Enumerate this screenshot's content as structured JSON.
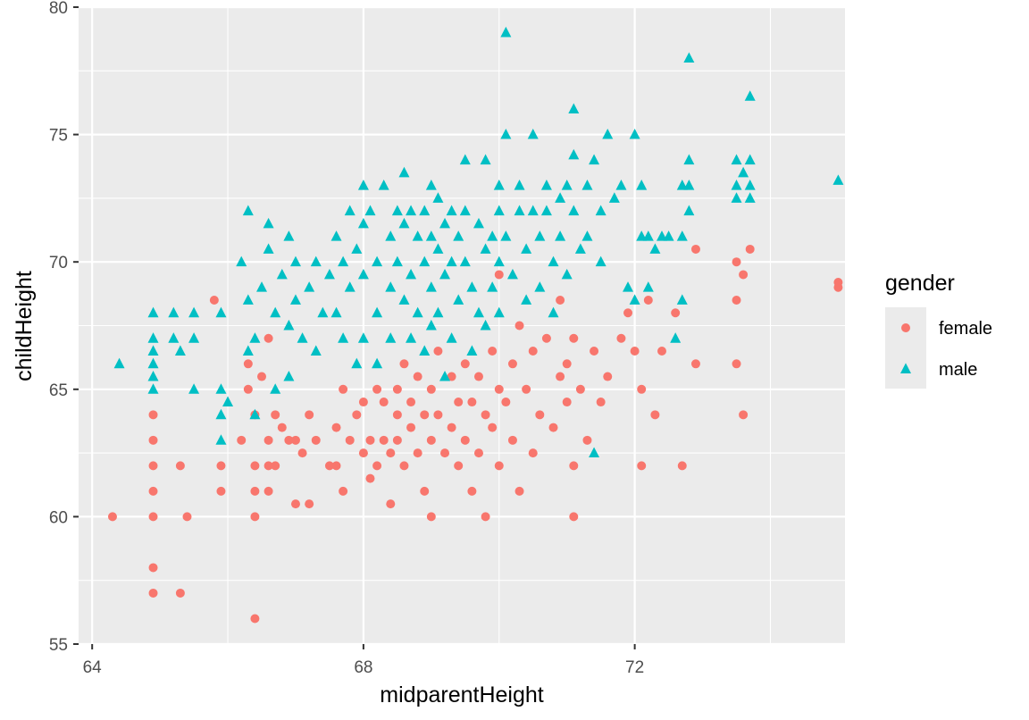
{
  "chart_data": {
    "type": "scatter",
    "title": "",
    "xlabel": "midparentHeight",
    "ylabel": "childHeight",
    "xlim": [
      63.8,
      75.1
    ],
    "ylim": [
      55,
      80
    ],
    "x_ticks": [
      64,
      68,
      72
    ],
    "y_ticks": [
      55,
      60,
      65,
      70,
      75,
      80
    ],
    "grid": true,
    "legend_title": "gender",
    "legend_position": "right",
    "series": [
      {
        "name": "female",
        "color": "#F8766D",
        "marker": "circle",
        "points": [
          [
            64.3,
            60
          ],
          [
            64.9,
            64
          ],
          [
            64.9,
            63
          ],
          [
            64.9,
            62
          ],
          [
            64.9,
            61
          ],
          [
            64.9,
            60
          ],
          [
            64.9,
            58
          ],
          [
            64.9,
            57
          ],
          [
            65.3,
            62
          ],
          [
            65.3,
            57
          ],
          [
            65.4,
            60
          ],
          [
            65.8,
            68.5
          ],
          [
            65.9,
            62
          ],
          [
            65.9,
            61
          ],
          [
            66.2,
            63
          ],
          [
            66.3,
            66
          ],
          [
            66.3,
            65
          ],
          [
            66.4,
            64
          ],
          [
            66.4,
            62
          ],
          [
            66.4,
            61
          ],
          [
            66.4,
            60
          ],
          [
            66.4,
            56
          ],
          [
            66.5,
            65.5
          ],
          [
            66.6,
            67
          ],
          [
            66.6,
            63
          ],
          [
            66.6,
            62
          ],
          [
            66.6,
            61
          ],
          [
            66.7,
            64
          ],
          [
            66.7,
            62
          ],
          [
            66.8,
            63.5
          ],
          [
            66.9,
            63
          ],
          [
            67.0,
            60.5
          ],
          [
            67.0,
            63
          ],
          [
            67.1,
            62.5
          ],
          [
            67.2,
            64
          ],
          [
            67.2,
            60.5
          ],
          [
            67.3,
            63
          ],
          [
            67.5,
            62
          ],
          [
            67.6,
            63.5
          ],
          [
            67.6,
            62
          ],
          [
            67.7,
            65
          ],
          [
            67.7,
            61
          ],
          [
            67.8,
            63
          ],
          [
            67.9,
            64
          ],
          [
            68.0,
            64.5
          ],
          [
            68.0,
            62.5
          ],
          [
            68.1,
            63
          ],
          [
            68.1,
            61.5
          ],
          [
            68.2,
            65
          ],
          [
            68.2,
            62
          ],
          [
            68.3,
            64.5
          ],
          [
            68.3,
            63
          ],
          [
            68.4,
            62.5
          ],
          [
            68.4,
            60.5
          ],
          [
            68.5,
            65
          ],
          [
            68.5,
            64
          ],
          [
            68.5,
            63
          ],
          [
            68.6,
            66
          ],
          [
            68.6,
            62
          ],
          [
            68.7,
            64.5
          ],
          [
            68.7,
            63.5
          ],
          [
            68.8,
            65.5
          ],
          [
            68.8,
            62.5
          ],
          [
            68.9,
            64
          ],
          [
            68.9,
            61
          ],
          [
            69.0,
            65
          ],
          [
            69.0,
            63
          ],
          [
            69.0,
            60
          ],
          [
            69.1,
            66.5
          ],
          [
            69.1,
            64
          ],
          [
            69.2,
            62.5
          ],
          [
            69.3,
            65.5
          ],
          [
            69.3,
            63.5
          ],
          [
            69.4,
            64.5
          ],
          [
            69.4,
            62
          ],
          [
            69.5,
            66
          ],
          [
            69.5,
            63
          ],
          [
            69.6,
            64.5
          ],
          [
            69.6,
            61
          ],
          [
            69.7,
            65.5
          ],
          [
            69.7,
            62.5
          ],
          [
            69.8,
            64
          ],
          [
            69.8,
            60
          ],
          [
            69.9,
            66.5
          ],
          [
            69.9,
            63.5
          ],
          [
            70.0,
            65
          ],
          [
            70.0,
            62
          ],
          [
            70.0,
            69.5
          ],
          [
            70.1,
            64.5
          ],
          [
            70.2,
            66
          ],
          [
            70.2,
            63
          ],
          [
            70.3,
            67.5
          ],
          [
            70.3,
            61
          ],
          [
            70.4,
            65
          ],
          [
            70.5,
            66.5
          ],
          [
            70.5,
            62.5
          ],
          [
            70.6,
            64
          ],
          [
            70.7,
            67
          ],
          [
            70.8,
            63.5
          ],
          [
            70.9,
            68.5
          ],
          [
            70.9,
            65.5
          ],
          [
            71.0,
            66
          ],
          [
            71.0,
            64.5
          ],
          [
            71.1,
            67
          ],
          [
            71.1,
            62
          ],
          [
            71.1,
            60
          ],
          [
            71.2,
            65
          ],
          [
            71.3,
            63
          ],
          [
            71.4,
            66.5
          ],
          [
            71.5,
            64.5
          ],
          [
            71.6,
            65.5
          ],
          [
            71.8,
            67
          ],
          [
            71.9,
            68
          ],
          [
            72.0,
            66.5
          ],
          [
            72.1,
            65
          ],
          [
            72.1,
            62
          ],
          [
            72.2,
            68.5
          ],
          [
            72.3,
            64
          ],
          [
            72.4,
            66.5
          ],
          [
            72.6,
            68
          ],
          [
            72.7,
            62
          ],
          [
            72.9,
            70.5
          ],
          [
            72.9,
            66
          ],
          [
            73.5,
            70
          ],
          [
            73.5,
            68.5
          ],
          [
            73.5,
            66
          ],
          [
            73.6,
            69.5
          ],
          [
            73.6,
            64
          ],
          [
            73.7,
            70.5
          ],
          [
            75.0,
            69.2
          ],
          [
            75.0,
            69
          ]
        ]
      },
      {
        "name": "male",
        "color": "#00BFC4",
        "marker": "triangle",
        "points": [
          [
            64.4,
            66
          ],
          [
            64.9,
            68
          ],
          [
            64.9,
            67
          ],
          [
            64.9,
            66.5
          ],
          [
            64.9,
            66
          ],
          [
            64.9,
            65.5
          ],
          [
            64.9,
            65
          ],
          [
            65.2,
            68
          ],
          [
            65.2,
            67
          ],
          [
            65.3,
            66.5
          ],
          [
            65.5,
            68
          ],
          [
            65.5,
            67
          ],
          [
            65.5,
            65
          ],
          [
            65.9,
            68
          ],
          [
            65.9,
            65
          ],
          [
            65.9,
            64
          ],
          [
            65.9,
            63
          ],
          [
            66.0,
            64.5
          ],
          [
            66.2,
            70
          ],
          [
            66.3,
            72
          ],
          [
            66.3,
            68.5
          ],
          [
            66.3,
            66.5
          ],
          [
            66.4,
            67
          ],
          [
            66.4,
            64
          ],
          [
            66.5,
            69
          ],
          [
            66.6,
            71.5
          ],
          [
            66.6,
            70.5
          ],
          [
            66.7,
            68
          ],
          [
            66.7,
            65
          ],
          [
            66.8,
            69.5
          ],
          [
            66.9,
            71
          ],
          [
            66.9,
            67.5
          ],
          [
            66.9,
            65.5
          ],
          [
            67.0,
            70
          ],
          [
            67.0,
            68.5
          ],
          [
            67.1,
            67
          ],
          [
            67.2,
            69
          ],
          [
            67.3,
            70
          ],
          [
            67.3,
            66.5
          ],
          [
            67.4,
            68
          ],
          [
            67.5,
            69.5
          ],
          [
            67.6,
            71
          ],
          [
            67.6,
            68
          ],
          [
            67.7,
            70
          ],
          [
            67.7,
            67
          ],
          [
            67.8,
            72
          ],
          [
            67.8,
            69
          ],
          [
            67.9,
            70.5
          ],
          [
            67.9,
            66
          ],
          [
            68.0,
            73
          ],
          [
            68.0,
            71.5
          ],
          [
            68.0,
            69.5
          ],
          [
            68.0,
            67
          ],
          [
            68.1,
            72
          ],
          [
            68.2,
            70
          ],
          [
            68.2,
            68
          ],
          [
            68.2,
            66
          ],
          [
            68.3,
            73
          ],
          [
            68.4,
            71
          ],
          [
            68.4,
            69
          ],
          [
            68.4,
            67
          ],
          [
            68.5,
            72
          ],
          [
            68.5,
            70
          ],
          [
            68.6,
            73.5
          ],
          [
            68.6,
            71.5
          ],
          [
            68.6,
            68.5
          ],
          [
            68.7,
            72
          ],
          [
            68.7,
            69.5
          ],
          [
            68.7,
            67
          ],
          [
            68.8,
            71
          ],
          [
            68.8,
            68
          ],
          [
            68.9,
            72
          ],
          [
            68.9,
            70
          ],
          [
            68.9,
            66.5
          ],
          [
            69.0,
            73
          ],
          [
            69.0,
            71
          ],
          [
            69.0,
            69
          ],
          [
            69.0,
            67.5
          ],
          [
            69.1,
            72.5
          ],
          [
            69.1,
            70.5
          ],
          [
            69.1,
            68
          ],
          [
            69.2,
            71.5
          ],
          [
            69.2,
            69.5
          ],
          [
            69.2,
            65.5
          ],
          [
            69.3,
            72
          ],
          [
            69.3,
            70
          ],
          [
            69.3,
            67
          ],
          [
            69.4,
            71
          ],
          [
            69.4,
            68.5
          ],
          [
            69.5,
            74
          ],
          [
            69.5,
            72
          ],
          [
            69.5,
            70
          ],
          [
            69.6,
            69
          ],
          [
            69.6,
            66.5
          ],
          [
            69.7,
            71.5
          ],
          [
            69.7,
            68
          ],
          [
            69.8,
            74
          ],
          [
            69.8,
            70.5
          ],
          [
            69.8,
            67.5
          ],
          [
            69.9,
            71
          ],
          [
            69.9,
            69
          ],
          [
            70.0,
            73
          ],
          [
            70.0,
            72
          ],
          [
            70.0,
            70
          ],
          [
            70.0,
            68
          ],
          [
            70.1,
            79
          ],
          [
            70.1,
            75
          ],
          [
            70.1,
            71
          ],
          [
            70.2,
            69.5
          ],
          [
            70.3,
            73
          ],
          [
            70.3,
            72
          ],
          [
            70.4,
            70.5
          ],
          [
            70.4,
            68.5
          ],
          [
            70.5,
            75
          ],
          [
            70.5,
            72
          ],
          [
            70.6,
            71
          ],
          [
            70.6,
            69
          ],
          [
            70.7,
            73
          ],
          [
            70.7,
            72
          ],
          [
            70.8,
            70
          ],
          [
            70.8,
            68
          ],
          [
            70.9,
            72.5
          ],
          [
            70.9,
            71
          ],
          [
            71.0,
            73
          ],
          [
            71.0,
            69.5
          ],
          [
            71.1,
            76
          ],
          [
            71.1,
            74.2
          ],
          [
            71.1,
            72
          ],
          [
            71.2,
            70.5
          ],
          [
            71.3,
            73
          ],
          [
            71.3,
            71
          ],
          [
            71.4,
            74
          ],
          [
            71.4,
            62.5
          ],
          [
            71.5,
            72
          ],
          [
            71.5,
            70
          ],
          [
            71.6,
            75
          ],
          [
            71.7,
            72.5
          ],
          [
            71.8,
            73
          ],
          [
            71.9,
            69
          ],
          [
            72.0,
            75
          ],
          [
            72.0,
            68.5
          ],
          [
            72.1,
            73
          ],
          [
            72.1,
            71
          ],
          [
            72.2,
            71
          ],
          [
            72.2,
            69
          ],
          [
            72.3,
            70.5
          ],
          [
            72.4,
            71
          ],
          [
            72.5,
            71
          ],
          [
            72.6,
            67
          ],
          [
            72.7,
            68.5
          ],
          [
            72.7,
            71
          ],
          [
            72.8,
            78
          ],
          [
            72.8,
            74
          ],
          [
            72.8,
            73
          ],
          [
            72.8,
            72
          ],
          [
            72.7,
            73
          ],
          [
            73.5,
            74
          ],
          [
            73.5,
            73
          ],
          [
            73.5,
            72.5
          ],
          [
            73.6,
            73.5
          ],
          [
            73.7,
            76.5
          ],
          [
            73.7,
            74
          ],
          [
            73.7,
            73
          ],
          [
            73.7,
            72.5
          ],
          [
            75.0,
            73.2
          ]
        ]
      }
    ]
  }
}
